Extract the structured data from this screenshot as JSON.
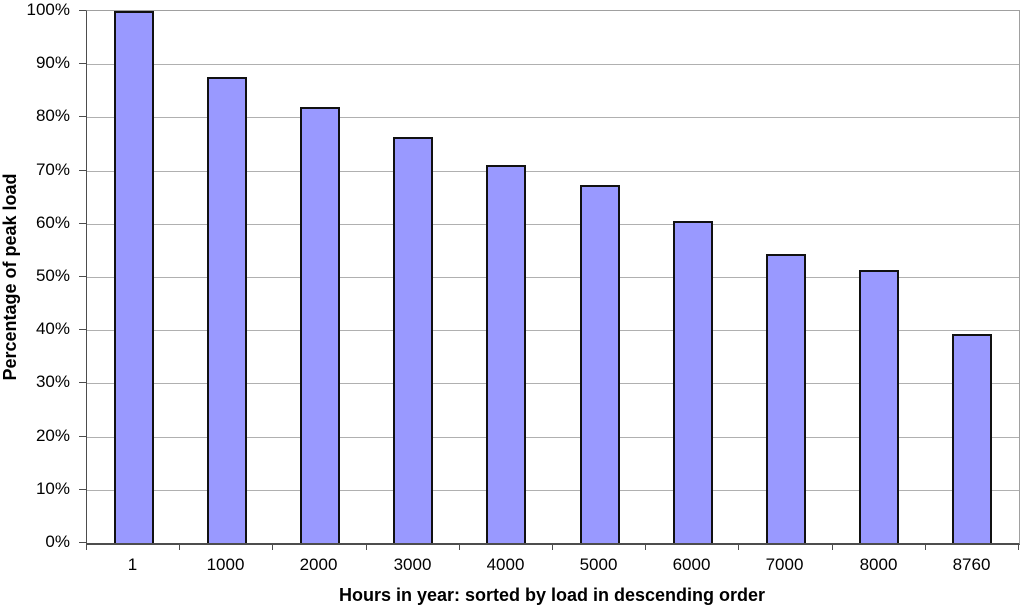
{
  "chart_data": {
    "type": "bar",
    "categories": [
      "1",
      "1000",
      "2000",
      "3000",
      "4000",
      "5000",
      "6000",
      "7000",
      "8000",
      "8760"
    ],
    "values": [
      100,
      87.5,
      82,
      76.3,
      71,
      67.3,
      60.6,
      54.4,
      51.4,
      39.3
    ],
    "title": "",
    "xlabel": "Hours in year: sorted by load in descending order",
    "ylabel": "Percentage of peak load",
    "ylim": [
      0,
      100
    ],
    "y_tick_step": 10,
    "y_tick_labels": [
      "0%",
      "10%",
      "20%",
      "30%",
      "40%",
      "50%",
      "60%",
      "70%",
      "80%",
      "90%",
      "100%"
    ],
    "grid": true,
    "legend_position": "none",
    "colors": {
      "bar_fill": "#9999ff",
      "bar_border": "#111111",
      "gridline": "#b0b0b0",
      "plot_border": "#a0a0a0",
      "axis_line": "#4d4d4d",
      "text": "#000000",
      "background": "#ffffff"
    }
  }
}
